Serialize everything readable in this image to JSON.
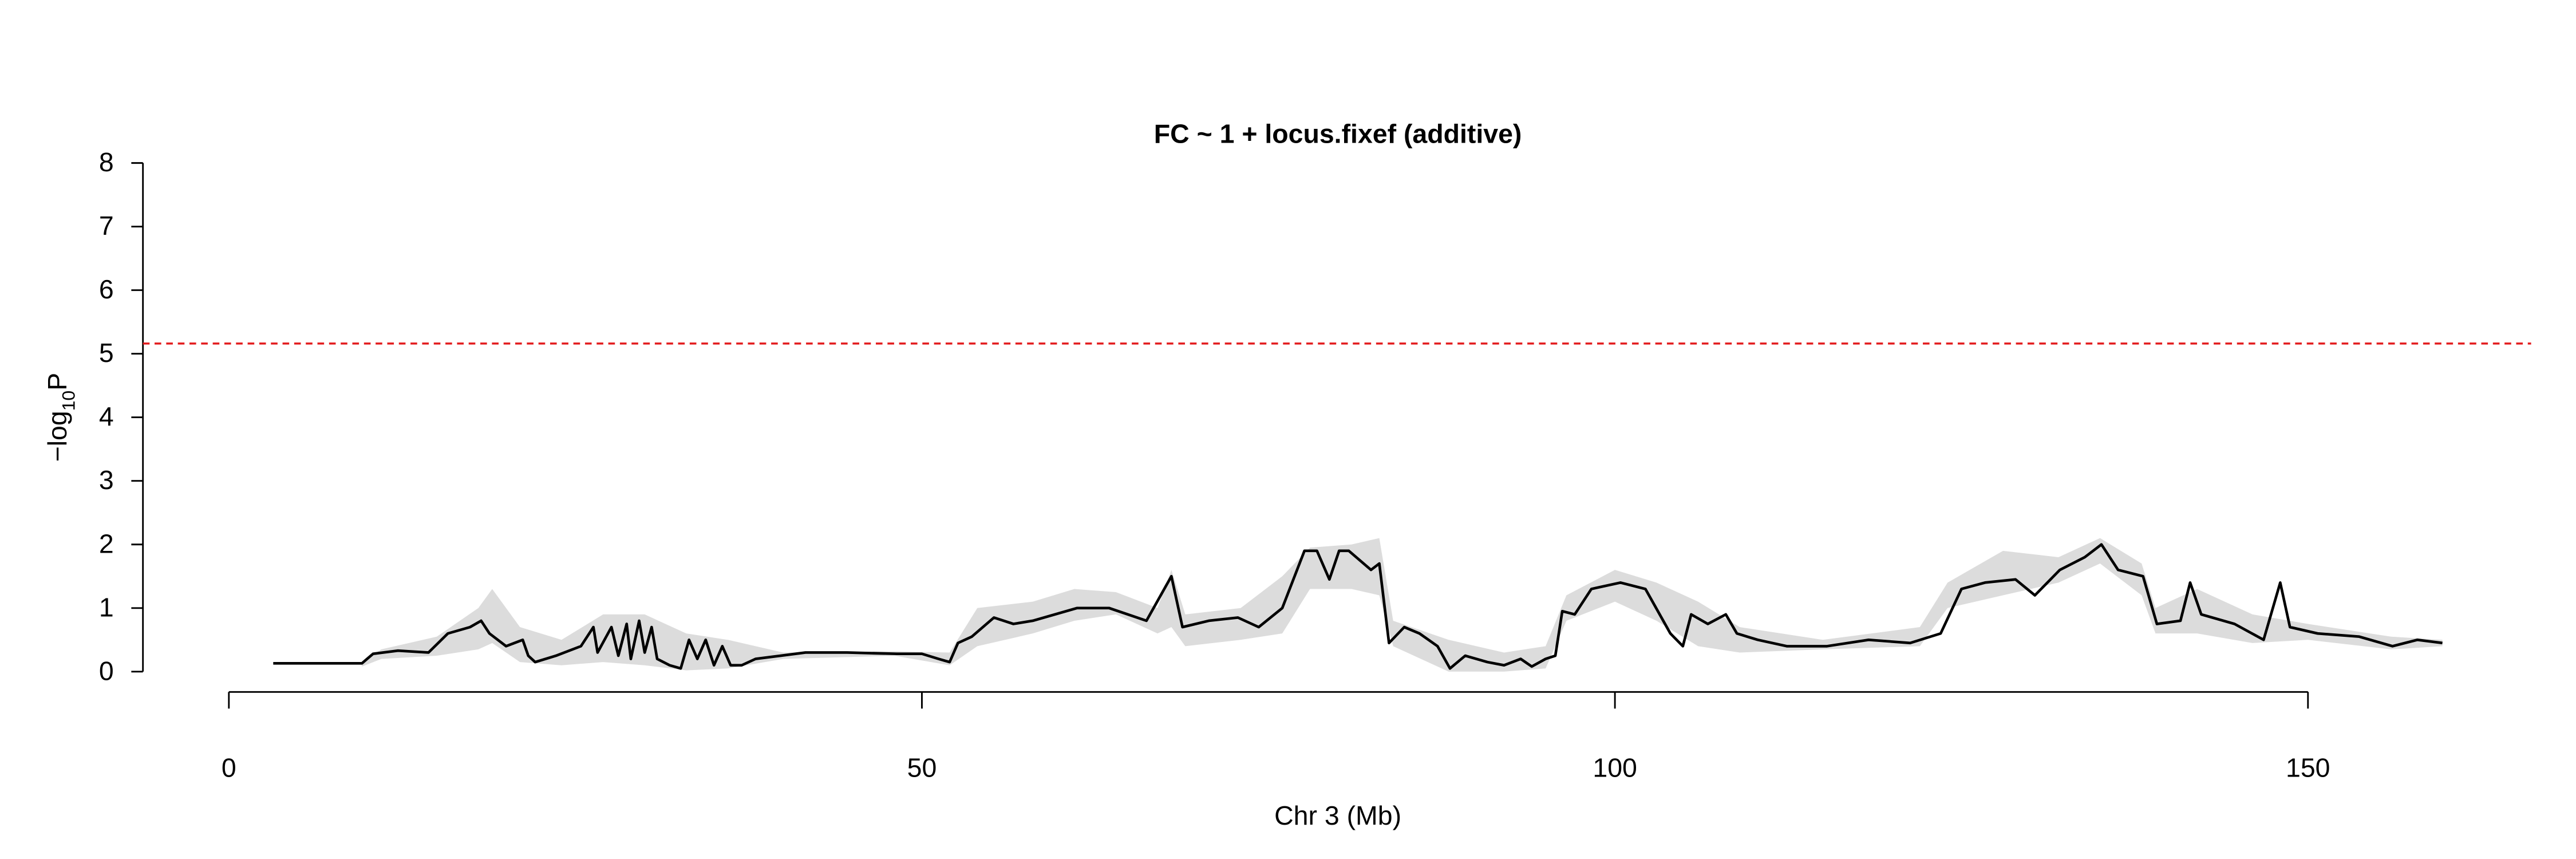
{
  "chart_data": {
    "type": "line",
    "title": "FC ~ 1 + locus.fixef (additive)",
    "xlabel": "Chr 3 (Mb)",
    "ylabel": "−log",
    "ylabel_sub": "10",
    "ylabel_end": "P",
    "xlim": [
      -6.2,
      166.1
    ],
    "ylim": [
      -0.32,
      8.32
    ],
    "xticks": [
      0,
      50,
      100,
      150
    ],
    "yticks": [
      0,
      1,
      2,
      3,
      4,
      5,
      6,
      7,
      8
    ],
    "x": [
      3.2,
      9.6,
      10.4,
      12.2,
      14.4,
      15.8,
      17.4,
      18.2,
      18.8,
      20,
      21.2,
      21.6,
      22.1,
      23.6,
      25.4,
      26.3,
      26.6,
      27.6,
      28.1,
      28.7,
      29,
      29.6,
      30,
      30.5,
      30.9,
      31.8,
      32.6,
      33.2,
      33.8,
      34.4,
      35,
      35.6,
      36.2,
      37,
      38,
      39.8,
      41.6,
      44.6,
      48.2,
      50,
      51.2,
      52,
      52.6,
      53.6,
      55.2,
      56.6,
      58,
      59.6,
      61.2,
      63.5,
      66.2,
      68,
      68.8,
      70.7,
      72.8,
      74.3,
      76,
      77.6,
      78.5,
      79.4,
      80.1,
      80.8,
      82.4,
      83,
      83.7,
      84.8,
      85.9,
      87.2,
      88.1,
      89.2,
      90.8,
      92,
      93.2,
      94,
      95,
      95.7,
      96.2,
      97.1,
      98.3,
      100.4,
      102.2,
      103.1,
      104,
      104.9,
      105.5,
      106.7,
      108,
      108.8,
      110.3,
      112.4,
      115.3,
      118.3,
      121.3,
      123.5,
      125,
      126.7,
      128.9,
      130.3,
      132.1,
      133.9,
      135.1,
      136.3,
      138.1,
      139.1,
      140.8,
      141.5,
      142.3,
      144.7,
      146.8,
      148,
      148.7,
      150.7,
      153.7,
      156.1,
      157.9,
      159.7
    ],
    "series": [
      {
        "color": "#000000",
        "values": [
          0.13,
          0.13,
          0.28,
          0.33,
          0.3,
          0.6,
          0.7,
          0.8,
          0.6,
          0.4,
          0.5,
          0.25,
          0.15,
          0.25,
          0.4,
          0.7,
          0.3,
          0.7,
          0.25,
          0.75,
          0.2,
          0.8,
          0.3,
          0.7,
          0.2,
          0.1,
          0.05,
          0.5,
          0.2,
          0.5,
          0.1,
          0.4,
          0.1,
          0.1,
          0.2,
          0.25,
          0.3,
          0.3,
          0.28,
          0.28,
          0.2,
          0.15,
          0.45,
          0.55,
          0.85,
          0.75,
          0.8,
          0.9,
          1.0,
          1.0,
          0.8,
          1.5,
          0.7,
          0.8,
          0.85,
          0.7,
          1.0,
          1.9,
          1.9,
          1.45,
          1.9,
          1.9,
          1.6,
          1.7,
          0.45,
          0.7,
          0.6,
          0.4,
          0.05,
          0.25,
          0.15,
          0.1,
          0.2,
          0.08,
          0.2,
          0.25,
          0.95,
          0.9,
          1.3,
          1.4,
          1.3,
          0.95,
          0.6,
          0.4,
          0.9,
          0.75,
          0.9,
          0.6,
          0.5,
          0.4,
          0.4,
          0.5,
          0.45,
          0.6,
          1.3,
          1.4,
          1.45,
          1.2,
          1.6,
          1.8,
          2.0,
          1.6,
          1.5,
          0.75,
          0.8,
          1.4,
          0.9,
          0.75,
          0.5,
          1.4,
          0.7,
          0.6,
          0.55,
          0.4,
          0.5,
          0.45
        ]
      }
    ],
    "band": {
      "color": "#dcdcdc",
      "x": [
        9.6,
        11,
        15,
        18,
        19,
        21,
        24,
        27,
        30,
        33,
        36,
        40,
        48,
        52,
        54,
        58,
        61,
        64,
        67,
        68,
        69,
        73,
        76,
        78,
        81,
        83,
        84,
        88,
        92,
        95,
        96.5,
        100,
        103,
        106,
        109,
        115,
        122,
        124,
        128,
        132,
        135,
        138,
        139,
        142,
        146,
        150,
        156,
        159.7
      ],
      "lower": [
        0.08,
        0.2,
        0.25,
        0.35,
        0.45,
        0.15,
        0.1,
        0.15,
        0.1,
        0.02,
        0.05,
        0.2,
        0.25,
        0.1,
        0.4,
        0.6,
        0.8,
        0.9,
        0.6,
        0.7,
        0.4,
        0.5,
        0.6,
        1.3,
        1.3,
        1.2,
        0.4,
        0.0,
        0.0,
        0.05,
        0.8,
        1.1,
        0.8,
        0.4,
        0.3,
        0.35,
        0.4,
        1.0,
        1.2,
        1.4,
        1.7,
        1.2,
        0.6,
        0.6,
        0.45,
        0.5,
        0.35,
        0.4
      ],
      "upper": [
        0.15,
        0.35,
        0.55,
        1.0,
        1.3,
        0.7,
        0.5,
        0.9,
        0.9,
        0.6,
        0.5,
        0.3,
        0.32,
        0.3,
        1.0,
        1.1,
        1.3,
        1.25,
        1.0,
        1.6,
        0.9,
        1.0,
        1.5,
        1.95,
        2.0,
        2.1,
        0.8,
        0.5,
        0.3,
        0.4,
        1.2,
        1.6,
        1.4,
        1.1,
        0.7,
        0.5,
        0.7,
        1.4,
        1.9,
        1.8,
        2.1,
        1.7,
        1.0,
        1.3,
        0.9,
        0.75,
        0.55,
        0.5
      ]
    },
    "threshold": {
      "value": 5.16,
      "color": "#e31a1c"
    }
  }
}
